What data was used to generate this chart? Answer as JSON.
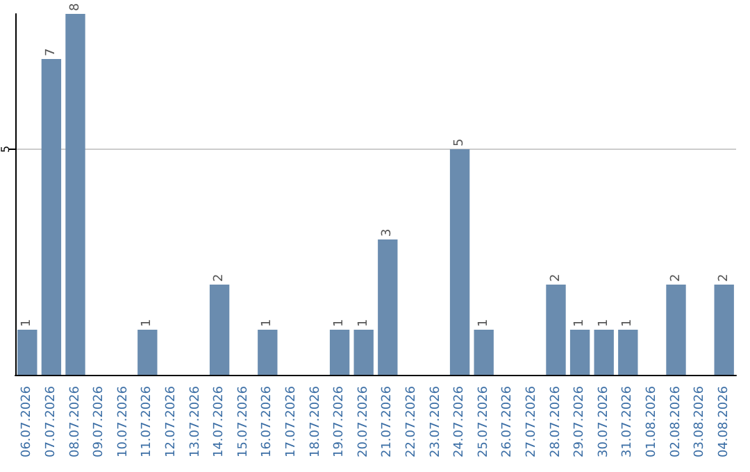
{
  "chart_data": {
    "type": "bar",
    "categories": [
      "06.07.2026",
      "07.07.2026",
      "08.07.2026",
      "09.07.2026",
      "10.07.2026",
      "11.07.2026",
      "12.07.2026",
      "13.07.2026",
      "14.07.2026",
      "15.07.2026",
      "16.07.2026",
      "17.07.2026",
      "18.07.2026",
      "19.07.2026",
      "20.07.2026",
      "21.07.2026",
      "22.07.2026",
      "23.07.2026",
      "24.07.2026",
      "25.07.2026",
      "26.07.2026",
      "27.07.2026",
      "28.07.2026",
      "29.07.2026",
      "30.07.2026",
      "31.07.2026",
      "01.08.2026",
      "02.08.2026",
      "03.08.2026",
      "04.08.2026"
    ],
    "values": [
      1,
      7,
      8,
      null,
      null,
      1,
      null,
      null,
      2,
      null,
      1,
      null,
      null,
      1,
      1,
      3,
      null,
      null,
      5,
      1,
      null,
      null,
      2,
      1,
      1,
      1,
      null,
      2,
      null,
      2
    ],
    "color": "#6a8caf",
    "ylim": [
      0,
      8
    ],
    "yticks": [
      5
    ],
    "grid": "y",
    "data_labels": true
  }
}
